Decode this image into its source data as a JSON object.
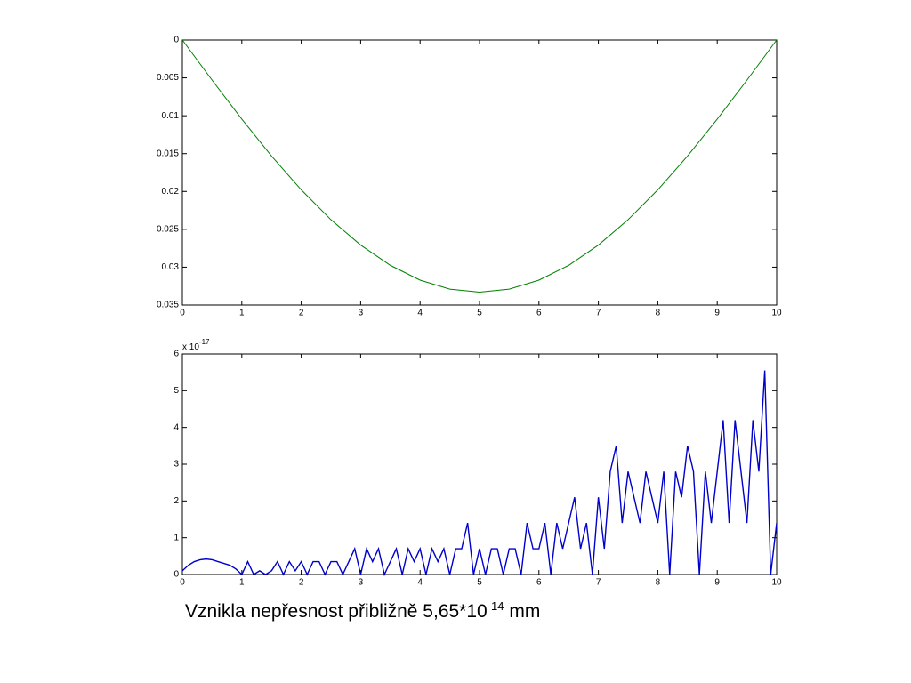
{
  "chart_data": [
    {
      "type": "line",
      "color": "#008000",
      "yreverse": true,
      "x": [
        0,
        0.5,
        1,
        1.5,
        2,
        2.5,
        3,
        3.5,
        4,
        4.5,
        5,
        5.5,
        6,
        6.5,
        7,
        7.5,
        8,
        8.5,
        9,
        9.5,
        10
      ],
      "values": [
        0,
        0.0053,
        0.01045,
        0.01532,
        0.01978,
        0.02373,
        0.02708,
        0.02976,
        0.03171,
        0.0329,
        0.0333,
        0.0329,
        0.03171,
        0.02976,
        0.02708,
        0.02373,
        0.01978,
        0.01532,
        0.01045,
        0.0053,
        0
      ],
      "xlim": [
        0,
        10
      ],
      "xticks": [
        0,
        1,
        2,
        3,
        4,
        5,
        6,
        7,
        8,
        9,
        10
      ],
      "ylim": [
        0,
        0.035
      ],
      "yticks": [
        0,
        0.005,
        0.01,
        0.015,
        0.02,
        0.025,
        0.03,
        0.035
      ]
    },
    {
      "type": "line",
      "color": "#0000cc",
      "multiplier": {
        "base": "x 10",
        "exponent": "-17"
      },
      "x": [
        0,
        0.1,
        0.2,
        0.3,
        0.4,
        0.5,
        0.6,
        0.7,
        0.8,
        0.9,
        1,
        1.1,
        1.2,
        1.3,
        1.4,
        1.5,
        1.6,
        1.7,
        1.8,
        1.9,
        2,
        2.1,
        2.2,
        2.3,
        2.4,
        2.5,
        2.6,
        2.7,
        2.8,
        2.9,
        3,
        3.1,
        3.2,
        3.3,
        3.4,
        3.5,
        3.6,
        3.7,
        3.8,
        3.9,
        4,
        4.1,
        4.2,
        4.3,
        4.4,
        4.5,
        4.6,
        4.7,
        4.8,
        4.9,
        5,
        5.1,
        5.2,
        5.3,
        5.4,
        5.5,
        5.6,
        5.7,
        5.8,
        5.9,
        6,
        6.1,
        6.2,
        6.3,
        6.4,
        6.5,
        6.6,
        6.7,
        6.8,
        6.9,
        7,
        7.1,
        7.2,
        7.3,
        7.4,
        7.5,
        7.6,
        7.7,
        7.8,
        7.9,
        8,
        8.1,
        8.2,
        8.3,
        8.4,
        8.5,
        8.6,
        8.7,
        8.8,
        8.9,
        9,
        9.1,
        9.2,
        9.3,
        9.4,
        9.5,
        9.6,
        9.7,
        9.8,
        9.9,
        10
      ],
      "values": [
        0.1,
        0.25,
        0.35,
        0.4,
        0.42,
        0.4,
        0.35,
        0.3,
        0.25,
        0.15,
        0,
        0.35,
        0,
        0.1,
        0,
        0.1,
        0.35,
        0,
        0.35,
        0.1,
        0.35,
        0,
        0.35,
        0.35,
        0,
        0.35,
        0.35,
        0,
        0.35,
        0.7,
        0,
        0.7,
        0.35,
        0.7,
        0,
        0.35,
        0.7,
        0,
        0.7,
        0.35,
        0.7,
        0,
        0.7,
        0.35,
        0.7,
        0,
        0.7,
        0.7,
        1.4,
        0,
        0.7,
        0,
        0.7,
        0.7,
        0,
        0.7,
        0.7,
        0,
        1.4,
        0.7,
        0.7,
        1.4,
        0,
        1.4,
        0.7,
        1.4,
        2.1,
        0.7,
        1.4,
        0,
        2.1,
        0.7,
        2.8,
        3.5,
        1.4,
        2.8,
        2.1,
        1.4,
        2.8,
        2.1,
        1.4,
        2.8,
        0,
        2.8,
        2.1,
        3.5,
        2.8,
        0,
        2.8,
        1.4,
        2.8,
        4.2,
        1.4,
        4.2,
        2.8,
        1.4,
        4.2,
        2.8,
        5.55,
        0,
        1.4
      ],
      "xlim": [
        0,
        10
      ],
      "xticks": [
        0,
        1,
        2,
        3,
        4,
        5,
        6,
        7,
        8,
        9,
        10
      ],
      "ylim": [
        0,
        6
      ],
      "yticks": [
        0,
        1,
        2,
        3,
        4,
        5,
        6
      ]
    }
  ],
  "caption": {
    "text": "Vznikla nepřesnost přibližně 5,65*10",
    "exponent": "-14",
    "suffix": " mm"
  }
}
